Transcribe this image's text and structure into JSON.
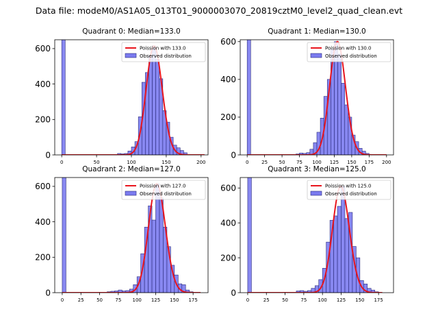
{
  "figure": {
    "suptitle": "Data file: modeM0/AS1A05_013T01_9000003070_20819cztM0_level2_quad_clean.evt"
  },
  "colors": {
    "hist_face": "#7b7bef",
    "hist_edge": "#2a2a7a",
    "fit_line": "#e8141c",
    "axes": "#000000",
    "legend_border": "#cccccc"
  },
  "chart_data": [
    {
      "type": "bar",
      "title": "Quadrant 0: Median=133.0",
      "median": 133.0,
      "bin_width": 5,
      "xlim": [
        -10,
        210
      ],
      "ylim": [
        0,
        650
      ],
      "xticks": [
        0,
        50,
        100,
        150,
        200
      ],
      "yticks": [
        0,
        200,
        400,
        600
      ],
      "legend": [
        "Poission with 133.0",
        "Observed distribution"
      ],
      "legend_position": "upper-right",
      "zero_bin_value": 2000,
      "bins_start": [
        80,
        85,
        90,
        95,
        100,
        105,
        110,
        115,
        120,
        125,
        130,
        135,
        140,
        145,
        150,
        155,
        160,
        165,
        170,
        175
      ],
      "counts": [
        8,
        6,
        8,
        22,
        45,
        75,
        215,
        410,
        465,
        560,
        615,
        540,
        430,
        250,
        185,
        100,
        55,
        40,
        25,
        12
      ],
      "fit_x_range": [
        0,
        205
      ]
    },
    {
      "type": "bar",
      "title": "Quadrant 1: Median=130.0",
      "median": 130.0,
      "bin_width": 5,
      "xlim": [
        -10,
        210
      ],
      "ylim": [
        0,
        610
      ],
      "xticks": [
        0,
        25,
        50,
        75,
        100,
        125,
        150,
        175,
        200
      ],
      "yticks": [
        0,
        200,
        400,
        600
      ],
      "legend": [
        "Poission with 130.0",
        "Observed distribution"
      ],
      "legend_position": "upper-right",
      "zero_bin_value": 2000,
      "bins_start": [
        70,
        75,
        80,
        85,
        90,
        95,
        100,
        105,
        110,
        115,
        120,
        125,
        130,
        135,
        140,
        145,
        150,
        155,
        160,
        165,
        170
      ],
      "counts": [
        5,
        10,
        8,
        12,
        30,
        65,
        120,
        195,
        310,
        400,
        560,
        600,
        535,
        380,
        265,
        200,
        105,
        70,
        35,
        20,
        8
      ],
      "fit_x_range": [
        0,
        200
      ]
    },
    {
      "type": "bar",
      "title": "Quadrant 2: Median=127.0",
      "median": 127.0,
      "bin_width": 5,
      "xlim": [
        -10,
        195
      ],
      "ylim": [
        0,
        650
      ],
      "xticks": [
        0,
        25,
        50,
        75,
        100,
        125,
        150,
        175
      ],
      "yticks": [
        0,
        200,
        400,
        600
      ],
      "legend": [
        "Poission with 127.0",
        "Observed distribution"
      ],
      "legend_position": "upper-right",
      "zero_bin_value": 2000,
      "bins_start": [
        60,
        65,
        70,
        75,
        80,
        85,
        90,
        95,
        100,
        105,
        110,
        115,
        120,
        125,
        130,
        135,
        140,
        145,
        150,
        155,
        160,
        165,
        170
      ],
      "counts": [
        5,
        8,
        10,
        15,
        10,
        12,
        20,
        45,
        90,
        220,
        370,
        490,
        410,
        615,
        535,
        370,
        260,
        155,
        100,
        50,
        45,
        15,
        5
      ],
      "fit_x_range": [
        0,
        185
      ]
    },
    {
      "type": "bar",
      "title": "Quadrant 3: Median=125.0",
      "median": 125.0,
      "bin_width": 5,
      "xlim": [
        -10,
        195
      ],
      "ylim": [
        0,
        660
      ],
      "xticks": [
        0,
        25,
        50,
        75,
        100,
        125,
        150,
        175
      ],
      "yticks": [
        0,
        200,
        400,
        600
      ],
      "legend": [
        "Poission with 125.0",
        "Observed distribution"
      ],
      "legend_position": "upper-right",
      "zero_bin_value": 2000,
      "bins_start": [
        65,
        70,
        75,
        80,
        85,
        90,
        95,
        100,
        105,
        110,
        115,
        120,
        125,
        130,
        135,
        140,
        145,
        150,
        155,
        160,
        165,
        170
      ],
      "counts": [
        10,
        12,
        8,
        12,
        25,
        40,
        75,
        140,
        290,
        415,
        440,
        495,
        610,
        425,
        460,
        265,
        200,
        70,
        50,
        25,
        15,
        5
      ],
      "fit_x_range": [
        0,
        180
      ]
    }
  ]
}
